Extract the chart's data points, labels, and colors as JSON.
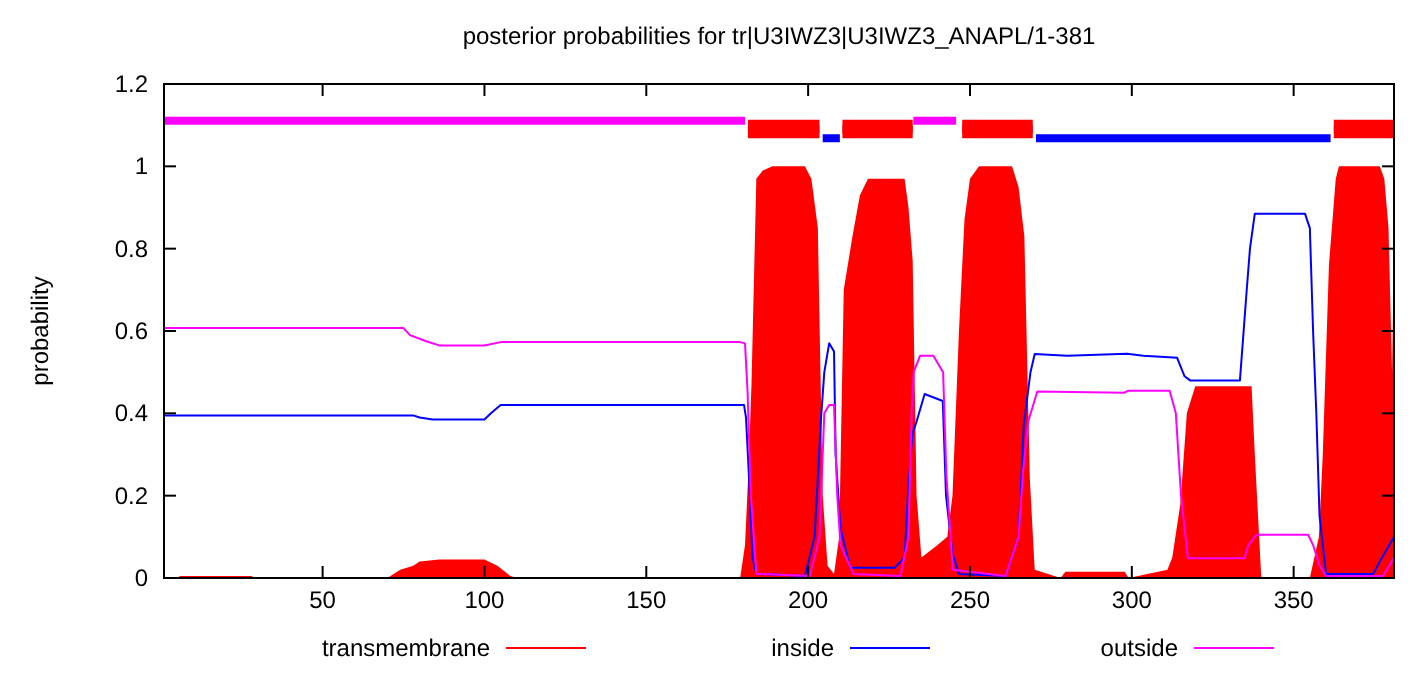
{
  "chart_data": {
    "type": "line",
    "title": "posterior probabilities for tr|U3IWZ3|U3IWZ3_ANAPL/1-381",
    "ylabel": "probability",
    "xlim": [
      1,
      381
    ],
    "xticks": [
      50,
      100,
      150,
      200,
      250,
      300,
      350
    ],
    "ylim": [
      0,
      1.2
    ],
    "yticks": [
      0,
      0.2,
      0.4,
      0.6,
      0.8,
      1,
      1.2
    ],
    "grid": false,
    "legend": "bottom",
    "marker": "none",
    "series": [
      {
        "name": "transmembrane",
        "type": "area",
        "color": "#ff0000",
        "x": [
          1,
          5,
          6,
          28,
          29,
          70,
          74,
          78,
          80,
          86,
          100,
          104,
          108,
          110,
          179,
          180.5,
          181.5,
          182.5,
          184,
          186,
          189,
          199,
          201,
          203,
          204.5,
          206,
          208,
          209.6,
          211,
          213.7,
          216,
          218.5,
          229.8,
          231,
          232.3,
          233.5,
          235,
          240,
          243,
          244.6,
          246.6,
          248.3,
          250,
          252.8,
          263,
          265,
          266.8,
          268.5,
          270,
          278,
          279.5,
          297.8,
          299,
          311,
          312.5,
          315,
          317,
          319.6,
          337,
          338,
          340,
          355,
          357.8,
          359,
          360.9,
          363,
          364,
          376.6,
          378,
          379.3,
          380.4,
          381
        ],
        "values": [
          0,
          0,
          0.005,
          0.005,
          0,
          0,
          0.02,
          0.03,
          0.04,
          0.045,
          0.045,
          0.03,
          0.005,
          0,
          0,
          0.08,
          0.25,
          0.47,
          0.97,
          0.99,
          1,
          1,
          0.97,
          0.85,
          0.2,
          0.03,
          0.01,
          0.1,
          0.7,
          0.83,
          0.93,
          0.97,
          0.97,
          0.9,
          0.77,
          0.2,
          0.05,
          0.08,
          0.1,
          0.2,
          0.6,
          0.87,
          0.97,
          1,
          1,
          0.95,
          0.83,
          0.24,
          0.02,
          0,
          0.015,
          0.015,
          0,
          0.02,
          0.05,
          0.18,
          0.4,
          0.466,
          0.466,
          0.3,
          0,
          0,
          0.1,
          0.3,
          0.76,
          0.97,
          1,
          1,
          0.97,
          0.85,
          0.5,
          0.8
        ]
      },
      {
        "name": "inside",
        "color": "#0000ff",
        "x": [
          1,
          78,
          80,
          84,
          100,
          102,
          105,
          180.2,
          180.8,
          181.7,
          182.8,
          184,
          199,
          202,
          204,
          205,
          206.5,
          208,
          208.5,
          210,
          213,
          226.7,
          229.8,
          230.8,
          232.2,
          233.5,
          236,
          241.6,
          242.6,
          244.6,
          246.6,
          261,
          265,
          266.6,
          268.7,
          270,
          280,
          298.5,
          303.6,
          314,
          316.3,
          318,
          333.4,
          335.5,
          336.5,
          338,
          353.5,
          355,
          356,
          357,
          358,
          360,
          374.6,
          376.6,
          381
        ],
        "values": [
          0.395,
          0.395,
          0.39,
          0.385,
          0.385,
          0.4,
          0.42,
          0.42,
          0.39,
          0.25,
          0.05,
          0.01,
          0.005,
          0.1,
          0.39,
          0.5,
          0.57,
          0.55,
          0.3,
          0.12,
          0.025,
          0.025,
          0.05,
          0.2,
          0.35,
          0.38,
          0.447,
          0.43,
          0.2,
          0.06,
          0.01,
          0.005,
          0.1,
          0.37,
          0.5,
          0.544,
          0.54,
          0.545,
          0.54,
          0.535,
          0.49,
          0.48,
          0.48,
          0.7,
          0.8,
          0.885,
          0.885,
          0.85,
          0.6,
          0.4,
          0.15,
          0.01,
          0.01,
          0.04,
          0.1
        ]
      },
      {
        "name": "outside",
        "color": "#ff00ff",
        "x": [
          1,
          75,
          77,
          82,
          86,
          100,
          105,
          179,
          180.5,
          181.3,
          182.3,
          184,
          200.5,
          203.5,
          205,
          206.5,
          208,
          209,
          210,
          214,
          228.5,
          231,
          232,
          232.6,
          234.6,
          238.7,
          241.7,
          242.7,
          244.7,
          261,
          265,
          266.3,
          268,
          270.8,
          297.6,
          299,
          311.7,
          313.6,
          315.2,
          317.3,
          334.8,
          336,
          338.5,
          354.5,
          356,
          358,
          360,
          377.6,
          381
        ],
        "values": [
          0.607,
          0.607,
          0.59,
          0.575,
          0.565,
          0.565,
          0.573,
          0.573,
          0.57,
          0.45,
          0.2,
          0.01,
          0.005,
          0.1,
          0.4,
          0.42,
          0.42,
          0.2,
          0.08,
          0.01,
          0.005,
          0.1,
          0.41,
          0.5,
          0.54,
          0.54,
          0.5,
          0.25,
          0.02,
          0.005,
          0.1,
          0.25,
          0.38,
          0.453,
          0.45,
          0.455,
          0.455,
          0.4,
          0.2,
          0.048,
          0.048,
          0.08,
          0.105,
          0.105,
          0.08,
          0.03,
          0.005,
          0.005,
          0.05
        ]
      },
      {
        "color": "#ff00ff",
        "x": [
          1,
          180.5,
          180.6,
          232.5,
          245.7
        ],
        "values": [
          1.111,
          1.111,
          null,
          1.111,
          1.111
        ]
      },
      {
        "color": "#0000ff",
        "x": [
          204.5,
          209.8,
          209.9,
          270.4,
          361.4
        ],
        "values": [
          1.068,
          1.068,
          null,
          1.068,
          1.068
        ]
      },
      {
        "color": "#ff0000",
        "x": [
          181.4,
          203.5,
          203.6,
          210.6,
          232.3,
          232.4,
          247.6,
          269.4,
          269.5,
          362.4,
          381
        ],
        "values": [
          1.09,
          1.09,
          null,
          1.09,
          1.09,
          null,
          1.09,
          1.09,
          null,
          1.09,
          1.09
        ],
        "lower": [
          1.068,
          1.068,
          null,
          1.068,
          1.068,
          null,
          1.068,
          1.068,
          null,
          1.068,
          1.068
        ],
        "upper": [
          1.113,
          1.113,
          null,
          1.113,
          1.113,
          null,
          1.113,
          1.113,
          null,
          1.113,
          1.113
        ]
      }
    ]
  }
}
